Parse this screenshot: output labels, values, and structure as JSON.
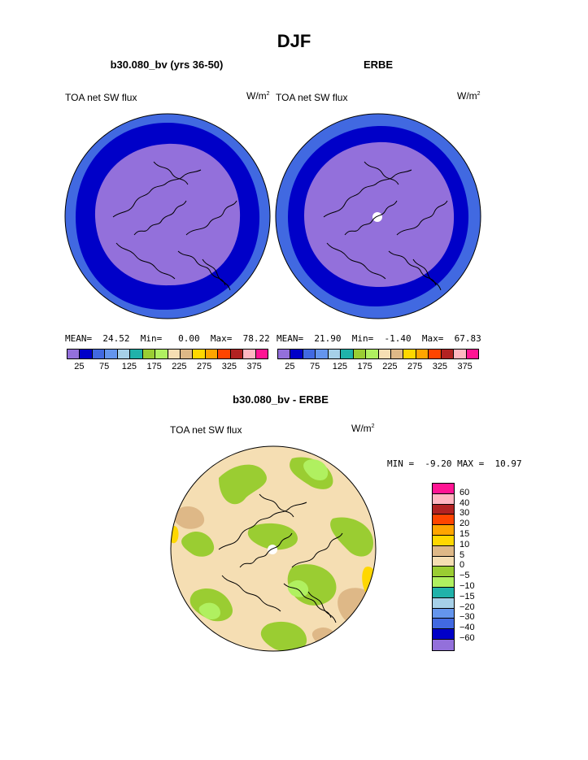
{
  "main_title": "DJF",
  "panels": [
    {
      "title": "b30.080_bv (yrs 36-50)",
      "variable": "TOA net SW flux",
      "units": "W/m",
      "units_sup": "2",
      "stats": {
        "mean_label": "MEAN=",
        "mean": "24.52",
        "min_label": "Min=",
        "min": "0.00",
        "max_label": "Max=",
        "max": "78.22"
      }
    },
    {
      "title": "ERBE",
      "variable": "TOA net SW flux",
      "units": "W/m",
      "units_sup": "2",
      "stats": {
        "mean_label": "MEAN=",
        "mean": "21.90",
        "min_label": "Min=",
        "min": "-1.40",
        "max_label": "Max=",
        "max": "67.83"
      }
    }
  ],
  "diff_panel": {
    "title": "b30.080_bv - ERBE",
    "variable": "TOA net SW flux",
    "units": "W/m",
    "units_sup": "2",
    "min_label": "MIN =",
    "min": "-9.20",
    "max_label": "MAX =",
    "max": "10.97"
  },
  "colorbar_top": {
    "colors": [
      "#9370db",
      "#0000c8",
      "#4169e1",
      "#6495ed",
      "#a6d0e8",
      "#20b2aa",
      "#9acd32",
      "#b0f060",
      "#f5deb3",
      "#deb887",
      "#ffd700",
      "#ffa500",
      "#ff4500",
      "#b22222",
      "#ffb6c1",
      "#ff1493"
    ],
    "tick_labels": [
      "25",
      "75",
      "125",
      "175",
      "225",
      "275",
      "325",
      "375"
    ]
  },
  "colorbar_diff": {
    "colors": [
      "#ff1493",
      "#ffb6c1",
      "#b22222",
      "#ff4500",
      "#ffa500",
      "#ffd700",
      "#deb887",
      "#f5deb3",
      "#9acd32",
      "#b0f060",
      "#20b2aa",
      "#a6d0e8",
      "#6495ed",
      "#4169e1",
      "#0000c8",
      "#9370db"
    ],
    "tick_labels": [
      "60",
      "40",
      "30",
      "20",
      "15",
      "10",
      "5",
      "0",
      "−5",
      "−10",
      "−15",
      "−20",
      "−30",
      "−40",
      "−60"
    ]
  },
  "map_colors": {
    "outer_ring": "#4169e1",
    "dark_ring": "#0000c8",
    "interior": "#9370db",
    "diff_background": "#f5deb3",
    "diff_green": "#9acd32",
    "diff_light_green": "#b0f060",
    "diff_tan": "#deb887",
    "diff_yellow": "#ffd700",
    "pole_marker": "#ffffff"
  }
}
